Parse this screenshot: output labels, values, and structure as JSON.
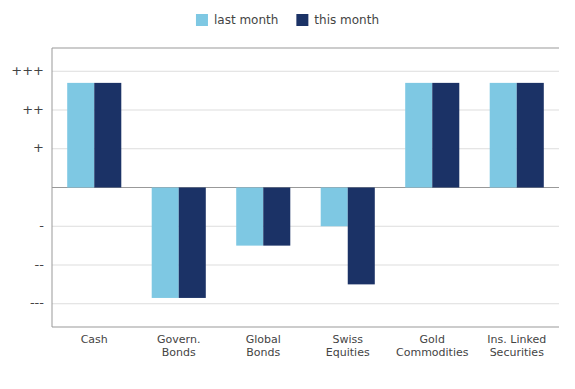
{
  "chart_data": {
    "type": "bar",
    "categories": [
      "Cash",
      "Govern.\nBonds",
      "Global\nBonds",
      "Swiss\nEquities",
      "Gold\nCommodities",
      "Ins. Linked\nSecurities"
    ],
    "series": [
      {
        "name": "last month",
        "color": "#7EC8E3",
        "values": [
          2.7,
          -2.85,
          -1.5,
          -1.0,
          2.7,
          2.7
        ]
      },
      {
        "name": "this month",
        "color": "#1B3266",
        "values": [
          2.7,
          -2.85,
          -1.5,
          -2.5,
          2.7,
          2.7
        ]
      }
    ],
    "ylim": [
      -3.6,
      3.6
    ],
    "yticks": [
      {
        "value": -3,
        "label": "---"
      },
      {
        "value": -2,
        "label": "--"
      },
      {
        "value": -1,
        "label": "-"
      },
      {
        "value": 0,
        "label": null
      },
      {
        "value": 1,
        "label": "+"
      },
      {
        "value": 2,
        "label": "++"
      },
      {
        "value": 3,
        "label": "+++"
      }
    ],
    "grid": true,
    "legend": "top"
  }
}
